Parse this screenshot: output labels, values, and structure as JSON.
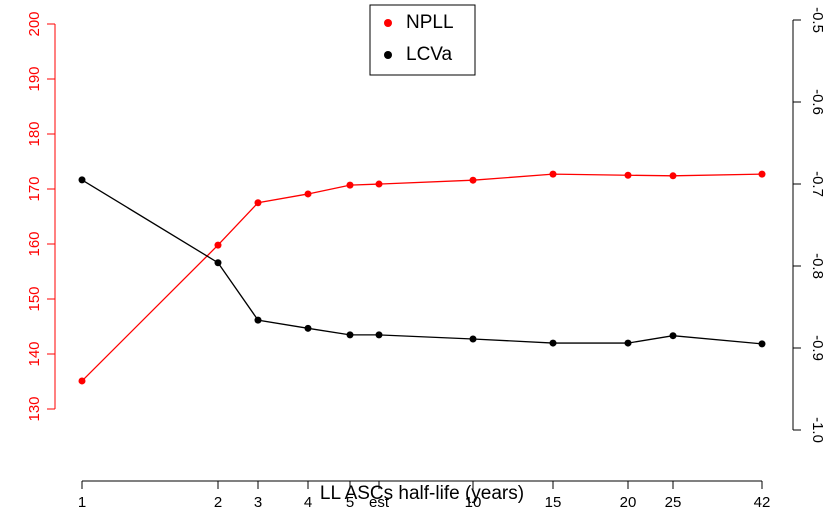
{
  "chart_data": {
    "type": "line",
    "xlabel": "LL ASCs half-life (years)",
    "categories": [
      "1",
      "2",
      "3",
      "4",
      "5",
      "est",
      "10",
      "15",
      "20",
      "25",
      "42"
    ],
    "series": [
      {
        "name": "NPLL",
        "color": "#ff0000",
        "axis": "y",
        "values": [
          135.1,
          159.8,
          167.5,
          169.1,
          170.7,
          170.9,
          171.6,
          172.7,
          172.5,
          172.4,
          172.7
        ]
      },
      {
        "name": "LCVa",
        "color": "#000000",
        "axis": "y2",
        "values": [
          -0.695,
          -0.796,
          -0.866,
          -0.876,
          -0.884,
          -0.884,
          -0.889,
          -0.894,
          -0.894,
          -0.885,
          -0.895
        ]
      }
    ],
    "ylim": [
      130,
      200
    ],
    "yticks": [
      130,
      140,
      150,
      160,
      170,
      180,
      190,
      200
    ],
    "ycolor": "#ff0000",
    "y2lim": [
      -1,
      -0.5
    ],
    "y2ticks": [
      {
        "value": -1,
        "label": "-1.0"
      },
      -0.9,
      -0.8,
      -0.7,
      -0.6,
      -0.5
    ],
    "legend": "top"
  }
}
